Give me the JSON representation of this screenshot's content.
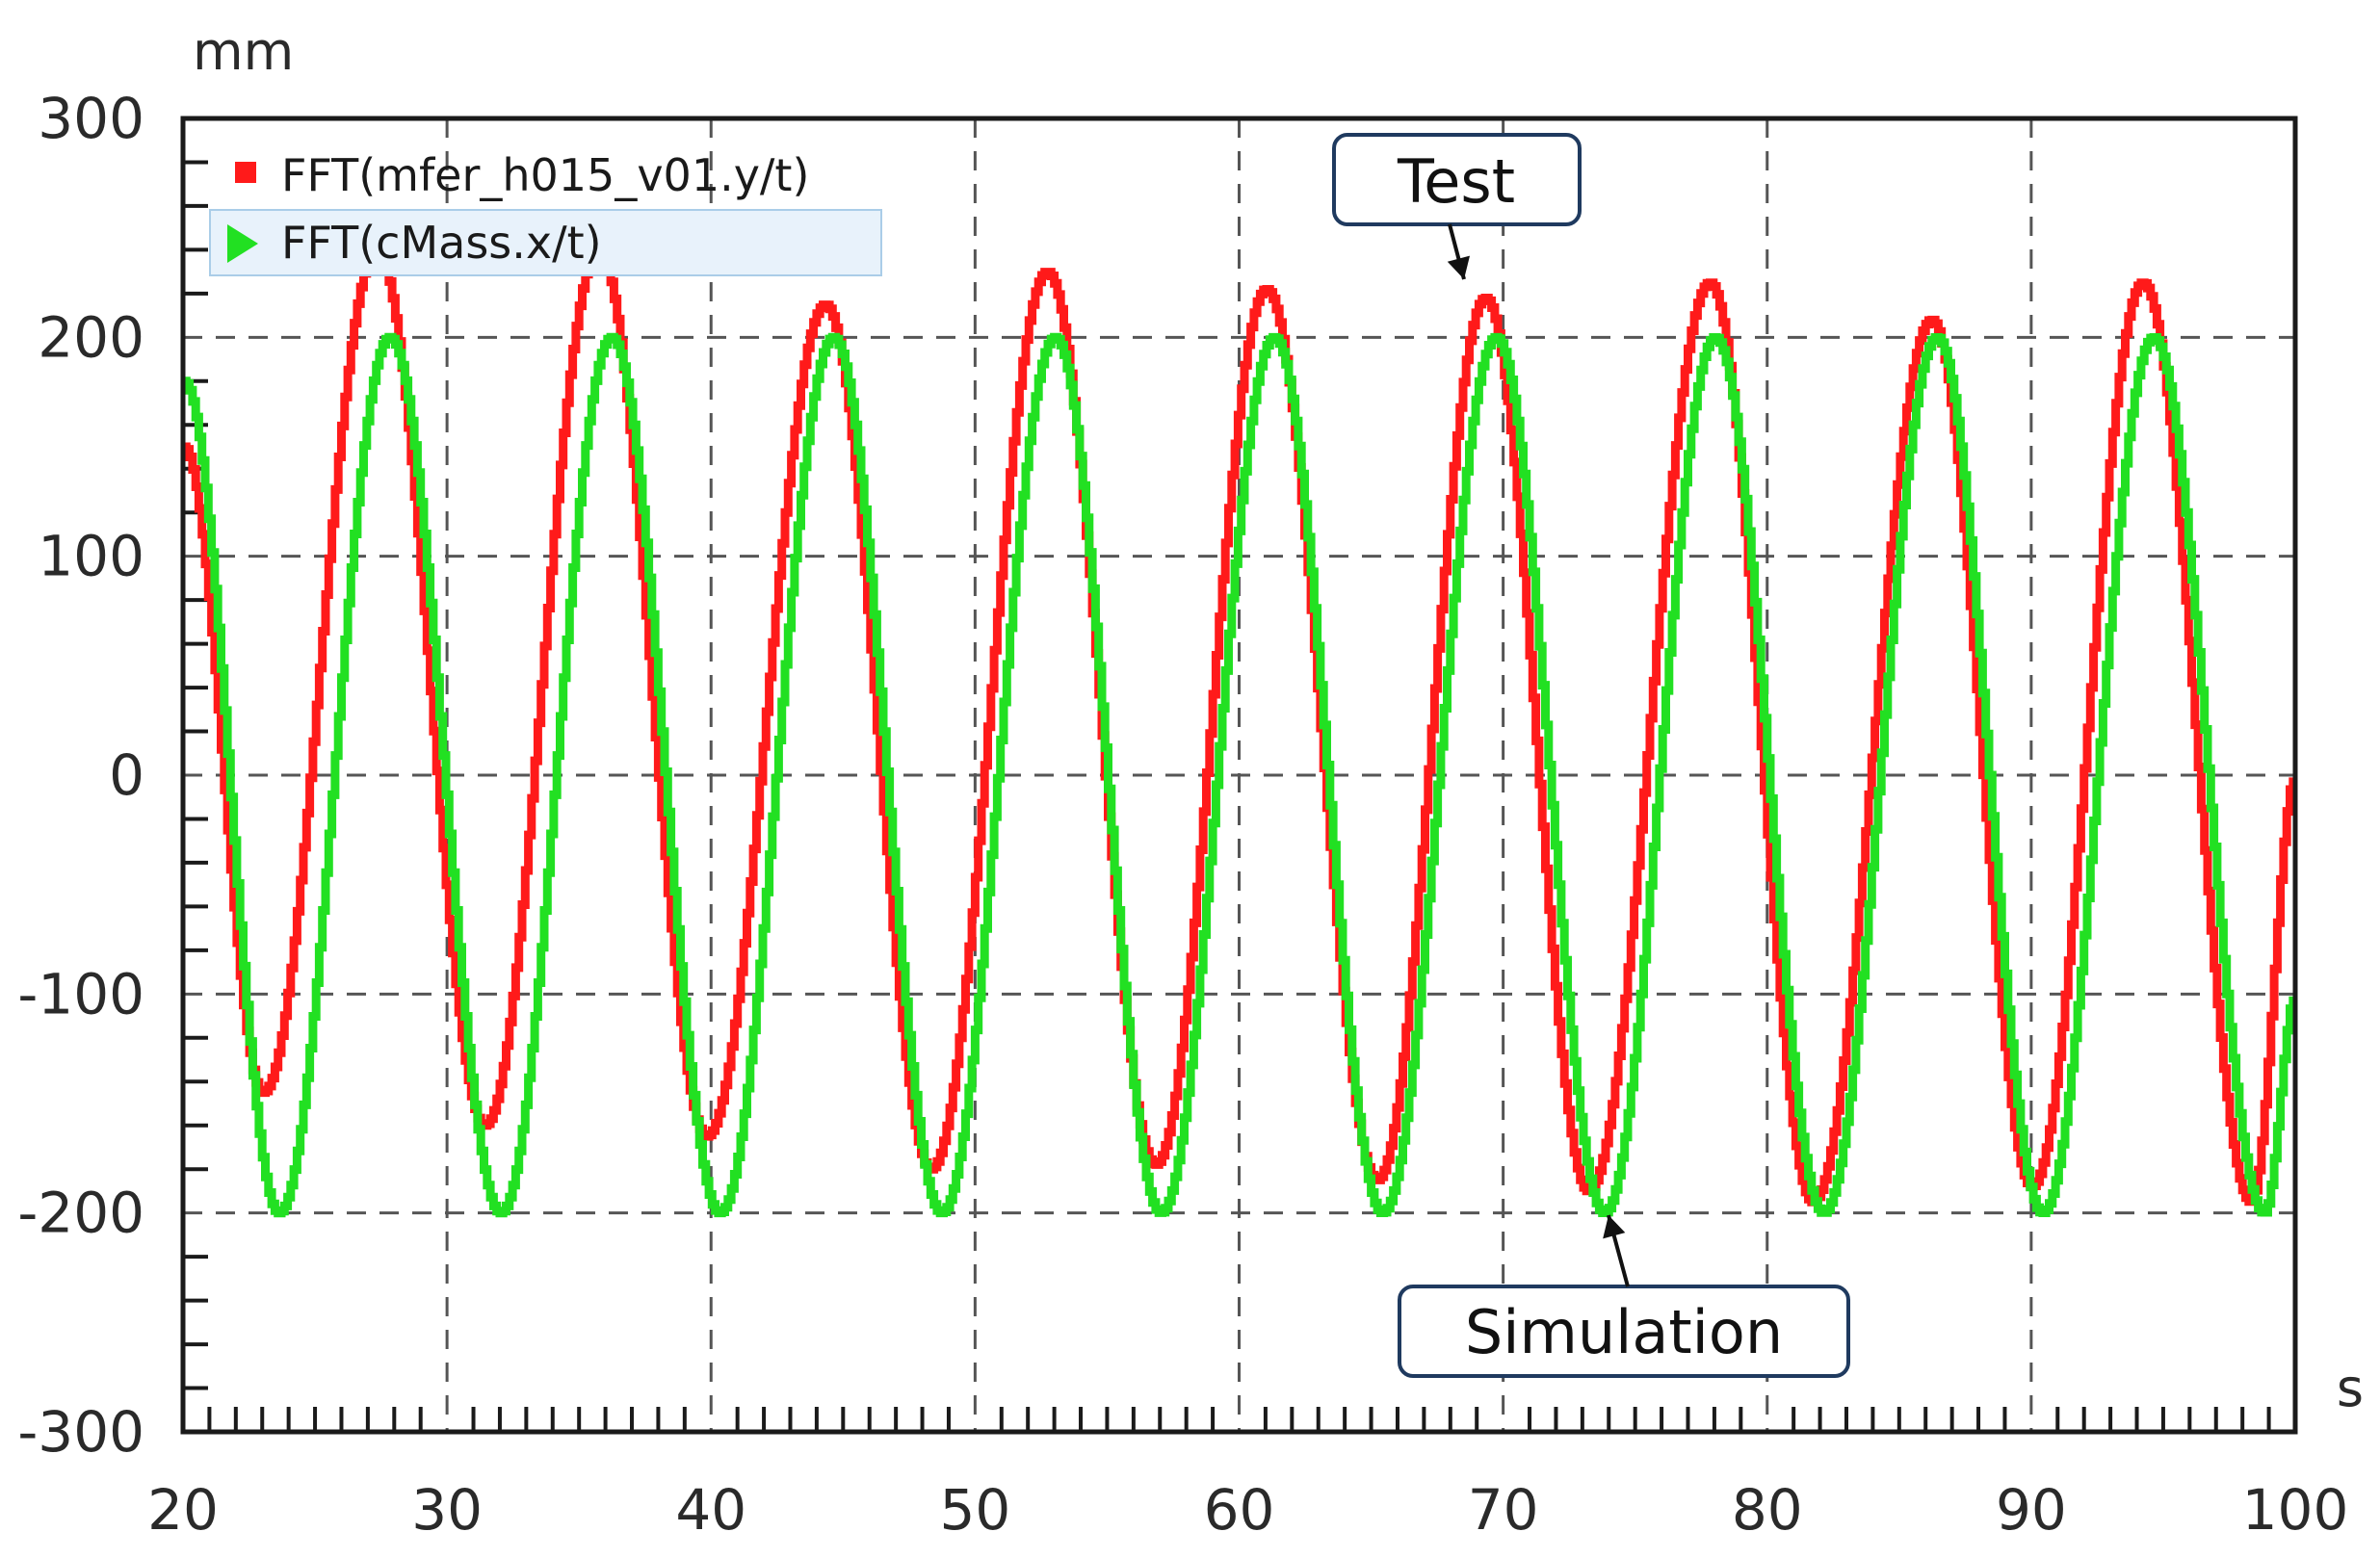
{
  "chart_data": {
    "type": "line",
    "title": "",
    "xlabel": "",
    "ylabel": "",
    "x_unit": "s",
    "y_unit": "mm",
    "xlim": [
      20,
      100
    ],
    "ylim": [
      -300,
      300
    ],
    "x_ticks": [
      20,
      30,
      40,
      50,
      60,
      70,
      80,
      90,
      100
    ],
    "y_ticks": [
      300,
      200,
      100,
      0,
      -100,
      -200,
      -300
    ],
    "x_tick_labels": [
      "20",
      "30",
      "40",
      "50",
      "60",
      "70",
      "80",
      "90",
      "100"
    ],
    "y_tick_labels": [
      "300",
      "200",
      "100",
      "0",
      "-100",
      "-200",
      "-300"
    ],
    "grid": true,
    "legend_position": "top-left",
    "series": [
      {
        "name": "FFT(mfer_h015_v01.y/t)",
        "color": "#ff1a1a",
        "marker": "square",
        "peaks": [
          {
            "x": 27.3,
            "y": 240
          },
          {
            "x": 35.7,
            "y": 240
          },
          {
            "x": 44.3,
            "y": 215
          },
          {
            "x": 52.7,
            "y": 230
          },
          {
            "x": 61.0,
            "y": 222
          },
          {
            "x": 69.3,
            "y": 218
          },
          {
            "x": 77.8,
            "y": 225
          },
          {
            "x": 86.2,
            "y": 208
          },
          {
            "x": 94.2,
            "y": 225
          }
        ],
        "troughs": [
          {
            "x": 23.0,
            "y": -145
          },
          {
            "x": 31.4,
            "y": -160
          },
          {
            "x": 39.8,
            "y": -165
          },
          {
            "x": 48.3,
            "y": -180
          },
          {
            "x": 56.8,
            "y": -178
          },
          {
            "x": 65.2,
            "y": -185
          },
          {
            "x": 73.2,
            "y": -190
          },
          {
            "x": 81.7,
            "y": -195
          },
          {
            "x": 90.0,
            "y": -188
          },
          {
            "x": 98.3,
            "y": -195
          }
        ],
        "start": {
          "x": 20.0,
          "y": 150
        },
        "end": {
          "x": 100.0,
          "y": 0
        }
      },
      {
        "name": "FFT(cMass.x/t)",
        "color": "#22e022",
        "marker": "triangle",
        "peaks": [
          {
            "x": 27.8,
            "y": 200
          },
          {
            "x": 36.2,
            "y": 200
          },
          {
            "x": 44.6,
            "y": 200
          },
          {
            "x": 53.0,
            "y": 200
          },
          {
            "x": 61.3,
            "y": 200
          },
          {
            "x": 69.7,
            "y": 200
          },
          {
            "x": 78.0,
            "y": 200
          },
          {
            "x": 86.4,
            "y": 200
          },
          {
            "x": 94.6,
            "y": 200
          }
        ],
        "troughs": [
          {
            "x": 23.6,
            "y": -200
          },
          {
            "x": 32.0,
            "y": -200
          },
          {
            "x": 40.3,
            "y": -200
          },
          {
            "x": 48.7,
            "y": -200
          },
          {
            "x": 57.0,
            "y": -200
          },
          {
            "x": 65.4,
            "y": -200
          },
          {
            "x": 73.8,
            "y": -200
          },
          {
            "x": 82.1,
            "y": -200
          },
          {
            "x": 90.4,
            "y": -200
          },
          {
            "x": 98.8,
            "y": -200
          }
        ],
        "start": {
          "x": 20.0,
          "y": 180
        },
        "end": {
          "x": 100.0,
          "y": -100
        }
      }
    ],
    "annotations": [
      {
        "text": "Test",
        "target": {
          "x": 69.3,
          "y": 218
        }
      },
      {
        "text": "Simulation",
        "target": {
          "x": 73.8,
          "y": -200
        }
      }
    ]
  }
}
